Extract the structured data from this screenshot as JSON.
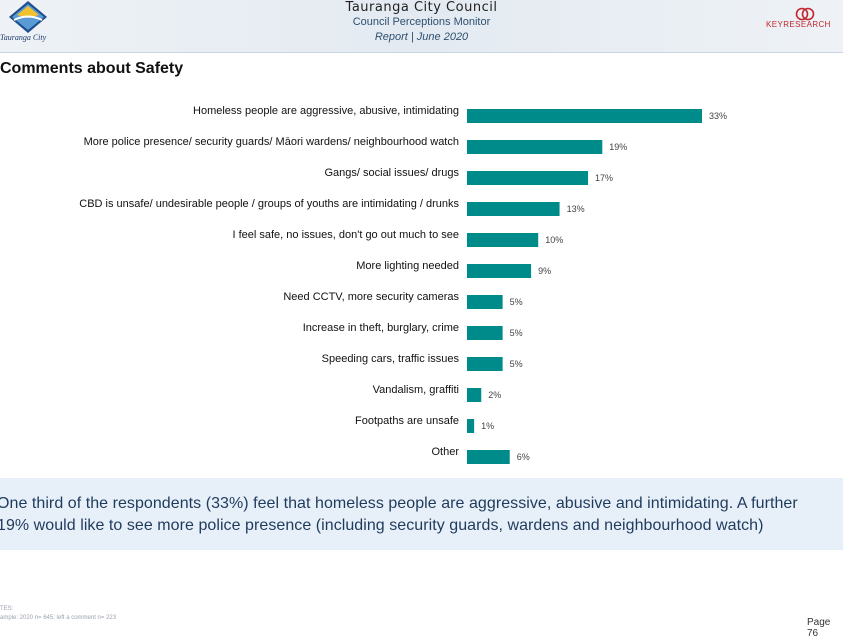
{
  "header": {
    "org": "Tauranga City Council",
    "subtitle": "Council Perceptions Monitor",
    "report_date": "Report | June 2020",
    "left_logo_text": "Tauranga City",
    "right_logo_text": "KEYRESEARCH"
  },
  "section_title": "Comments about Safety",
  "chart_data": {
    "type": "bar",
    "orientation": "horizontal",
    "title": "",
    "xlabel": "",
    "ylabel": "",
    "xlim": [
      0,
      33
    ],
    "grid": false,
    "legend": "none",
    "bar_color": "#008b8b",
    "categories": [
      "Homeless people are aggressive, abusive, intimidating",
      "More police presence/ security guards/ Māori wardens/ neighbourhood watch",
      "Gangs/ social issues/ drugs",
      "CBD is unsafe/ undesirable people / groups of youths are intimidating / drunks",
      "I feel safe, no issues, don't go out much to see",
      "More lighting needed",
      "Need CCTV, more security cameras",
      "Increase in theft, burglary, crime",
      "Speeding cars, traffic issues",
      "Vandalism, graffiti",
      "Footpaths are unsafe",
      "Other"
    ],
    "values": [
      33,
      19,
      17,
      13,
      10,
      9,
      5,
      5,
      5,
      2,
      1,
      6
    ],
    "value_labels": [
      "33%",
      "19%",
      "17%",
      "13%",
      "10%",
      "9%",
      "5%",
      "5%",
      "5%",
      "2%",
      "1%",
      "6%"
    ]
  },
  "summary": "One third of the respondents (33%) feel that homeless people are aggressive, abusive and intimidating. A further\n19% would like to see more police presence (including security guards, wardens and neighbourhood watch)",
  "footer": {
    "notes_label": "TES:",
    "notes_sample": "ample: 2020 n= 645; left a comment n= 223",
    "page_number": "Page 76"
  }
}
